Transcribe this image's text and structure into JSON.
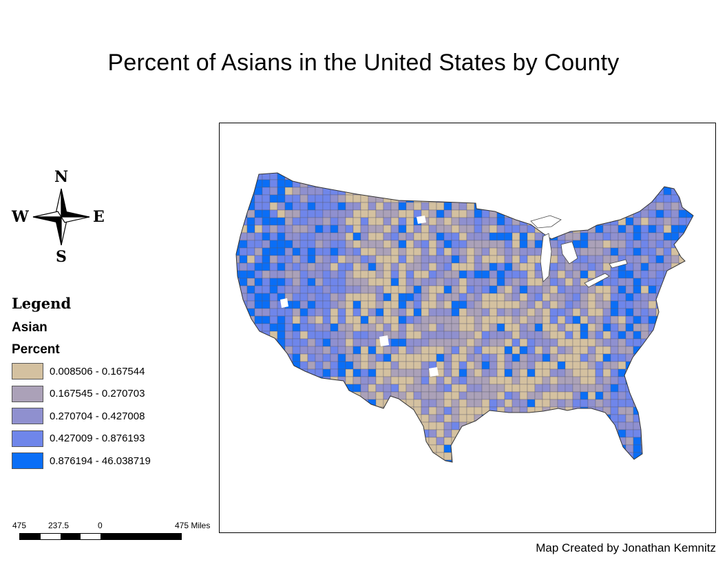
{
  "title": "Percent of Asians in the United States by County",
  "compass": {
    "north": "N",
    "south": "S",
    "east": "E",
    "west": "W"
  },
  "legend": {
    "title": "Legend",
    "field": "Asian",
    "subfield": "Percent",
    "classes": [
      {
        "label": "0.008506 - 0.167544",
        "color": "#d4c1a0"
      },
      {
        "label": "0.167545 - 0.270703",
        "color": "#aba1b8"
      },
      {
        "label": "0.270704 - 0.427008",
        "color": "#8f90cf"
      },
      {
        "label": "0.427009 - 0.876193",
        "color": "#6f86ea"
      },
      {
        "label": "0.876194 - 46.038719",
        "color": "#0a6ef6"
      }
    ]
  },
  "scale_bar": {
    "labels": [
      "475",
      "237.5",
      "0",
      "475 Miles"
    ]
  },
  "credit": "Map Created by Jonathan Kemnitz"
}
